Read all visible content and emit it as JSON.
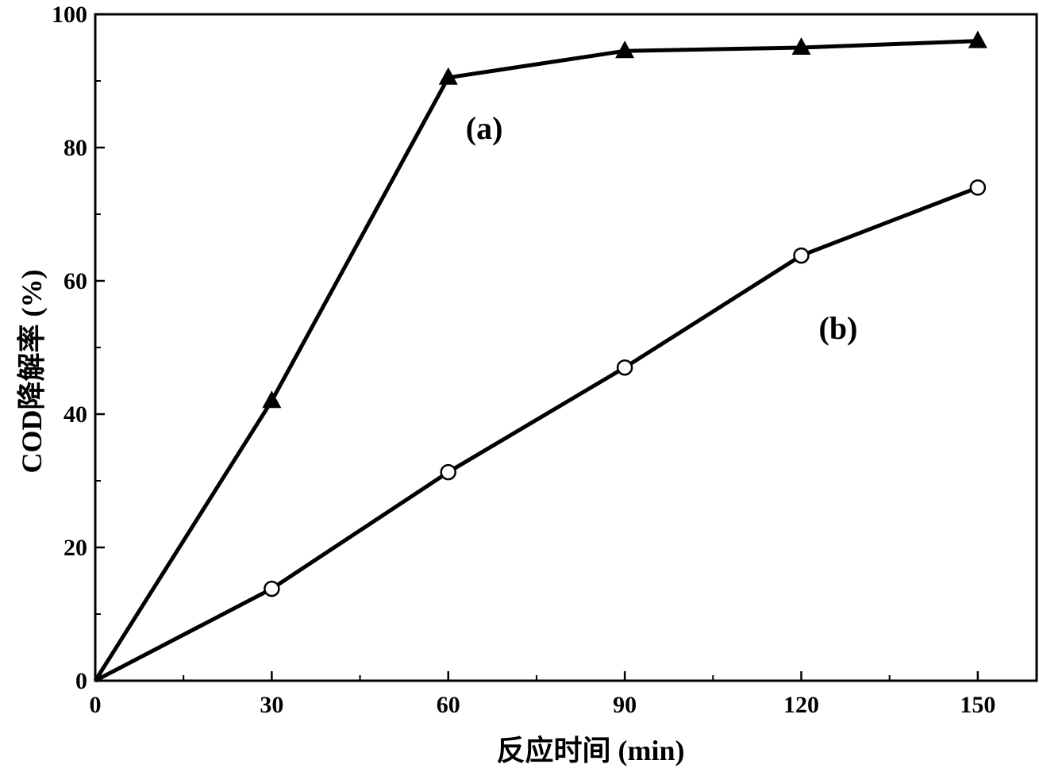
{
  "chart_data": {
    "type": "line",
    "title": "",
    "xlabel": "反应时间 (min)",
    "ylabel": "COD降解率 (%)",
    "xlim": [
      0,
      160
    ],
    "ylim": [
      0,
      100
    ],
    "x_ticks": [
      0,
      30,
      60,
      90,
      120,
      150
    ],
    "y_ticks": [
      0,
      20,
      40,
      60,
      80,
      100
    ],
    "x_minor_ticks": [
      15,
      45,
      75,
      105,
      135
    ],
    "y_minor_ticks": [
      10,
      30,
      50,
      70,
      90
    ],
    "grid": false,
    "series": [
      {
        "x": [
          0,
          30,
          60,
          90,
          120,
          150
        ],
        "values": [
          0,
          42,
          90.5,
          94.5,
          95,
          96
        ],
        "marker": "filled-triangle",
        "color": "#000000"
      },
      {
        "x": [
          0,
          30,
          60,
          90,
          120,
          150
        ],
        "values": [
          0,
          13.8,
          31.3,
          47,
          63.8,
          74
        ],
        "marker": "open-circle",
        "color": "#000000"
      }
    ],
    "annotations": [
      {
        "text": "(a)",
        "x": 60,
        "y": 83
      },
      {
        "text": "(b)",
        "x": 120,
        "y": 53
      }
    ]
  }
}
